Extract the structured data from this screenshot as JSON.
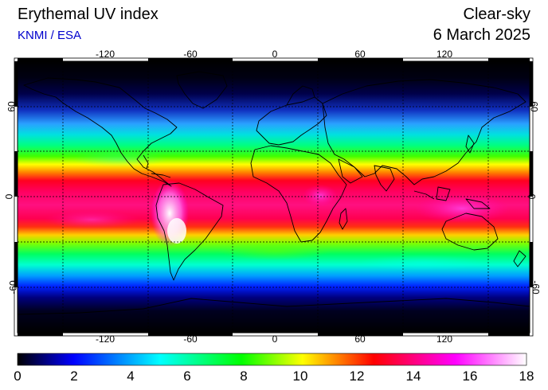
{
  "header": {
    "title": "Erythemal UV index",
    "source": "KNMI / ESA",
    "condition": "Clear-sky",
    "date": "6 March 2025"
  },
  "map": {
    "projection": "equirectangular",
    "longitude_ticks": [
      "-120",
      "-60",
      "0",
      "60",
      "120"
    ],
    "latitude_ticks": [
      "60",
      "0",
      "-60"
    ],
    "grid": "dashed every 30 degrees"
  },
  "colorbar": {
    "min": 0,
    "max": 18,
    "labels": [
      "0",
      "2",
      "4",
      "6",
      "8",
      "10",
      "12",
      "14",
      "16",
      "18"
    ],
    "colors": [
      "#000000",
      "#0000ff",
      "#00ffff",
      "#00ff00",
      "#ffff00",
      "#ff0000",
      "#ff00ff",
      "#ffffff"
    ]
  }
}
